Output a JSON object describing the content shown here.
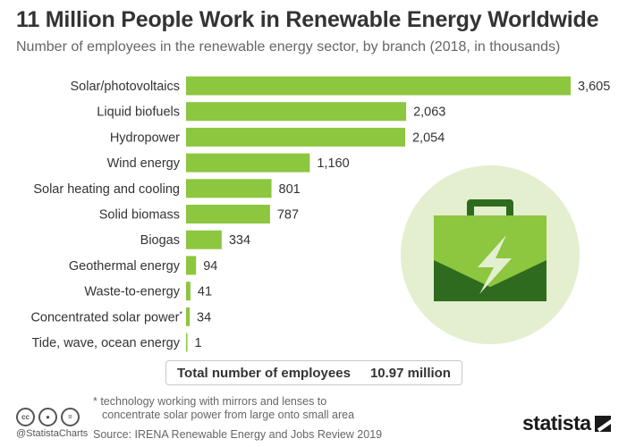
{
  "header": {
    "title": "11 Million People Work in Renewable Energy Worldwide",
    "subtitle": "Number of employees in the renewable energy sector, by branch (2018, in thousands)"
  },
  "chart_data": {
    "type": "bar",
    "orientation": "horizontal",
    "title": "11 Million People Work in Renewable Energy Worldwide",
    "subtitle": "Number of employees in the renewable energy sector, by branch (2018, in thousands)",
    "categories": [
      "Solar/photovoltaics",
      "Liquid biofuels",
      "Hydropower",
      "Wind energy",
      "Solar heating and cooling",
      "Solid biomass",
      "Biogas",
      "Geothermal energy",
      "Waste-to-energy",
      "Concentrated solar power",
      "Tide, wave, ocean energy"
    ],
    "category_markers": [
      "",
      "",
      "",
      "",
      "",
      "",
      "",
      "",
      "",
      "*",
      ""
    ],
    "values": [
      3605,
      2063,
      2054,
      1160,
      801,
      787,
      334,
      94,
      41,
      34,
      1
    ],
    "value_labels": [
      "3,605",
      "2,063",
      "2,054",
      "1,160",
      "801",
      "787",
      "334",
      "94",
      "41",
      "34",
      "1"
    ],
    "xlim": [
      0,
      3605
    ],
    "grid": false,
    "legend": "none",
    "bar_color": "#8dc63f"
  },
  "total": {
    "label": "Total number of employees",
    "value": "10.97 million"
  },
  "footnote": {
    "line1": "* technology working with mirrors and lenses to",
    "line2": "concentrate solar power from large onto small area"
  },
  "footer": {
    "handle": "@StatistaCharts",
    "source": "Source: IRENA Renewable Energy and Jobs Review 2019",
    "brand": "statista",
    "cc_icons": [
      "cc-icon",
      "attribution-icon",
      "no-derivatives-icon"
    ]
  },
  "illustration": {
    "icon": "briefcase-lightning-icon",
    "circle_color": "#e3efcf",
    "case_light": "#8dc63f",
    "case_dark": "#2e6b1f"
  }
}
